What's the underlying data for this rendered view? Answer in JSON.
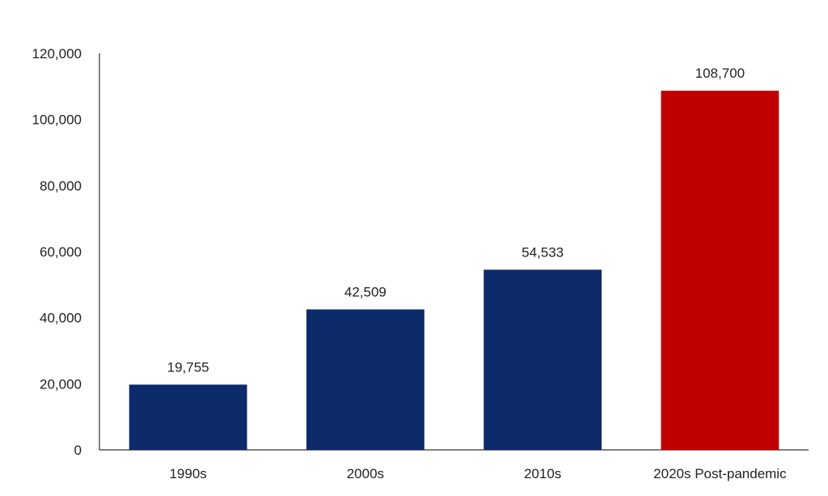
{
  "chart_data": {
    "type": "bar",
    "categories": [
      "1990s",
      "2000s",
      "2010s",
      "2020s Post-pandemic"
    ],
    "values": [
      19755,
      42509,
      54533,
      108700
    ],
    "data_labels": [
      "19,755",
      "42,509",
      "54,533",
      "108,700"
    ],
    "bar_colors": [
      "#0d2a6b",
      "#0d2a6b",
      "#0d2a6b",
      "#c00000"
    ],
    "ylim": [
      0,
      120000
    ],
    "yticks": [
      0,
      20000,
      40000,
      60000,
      80000,
      100000,
      120000
    ],
    "ytick_labels": [
      "0",
      "20,000",
      "40,000",
      "60,000",
      "80,000",
      "100,000",
      "120,000"
    ],
    "title": "",
    "xlabel": "",
    "ylabel": "",
    "grid": false,
    "legend": false
  }
}
